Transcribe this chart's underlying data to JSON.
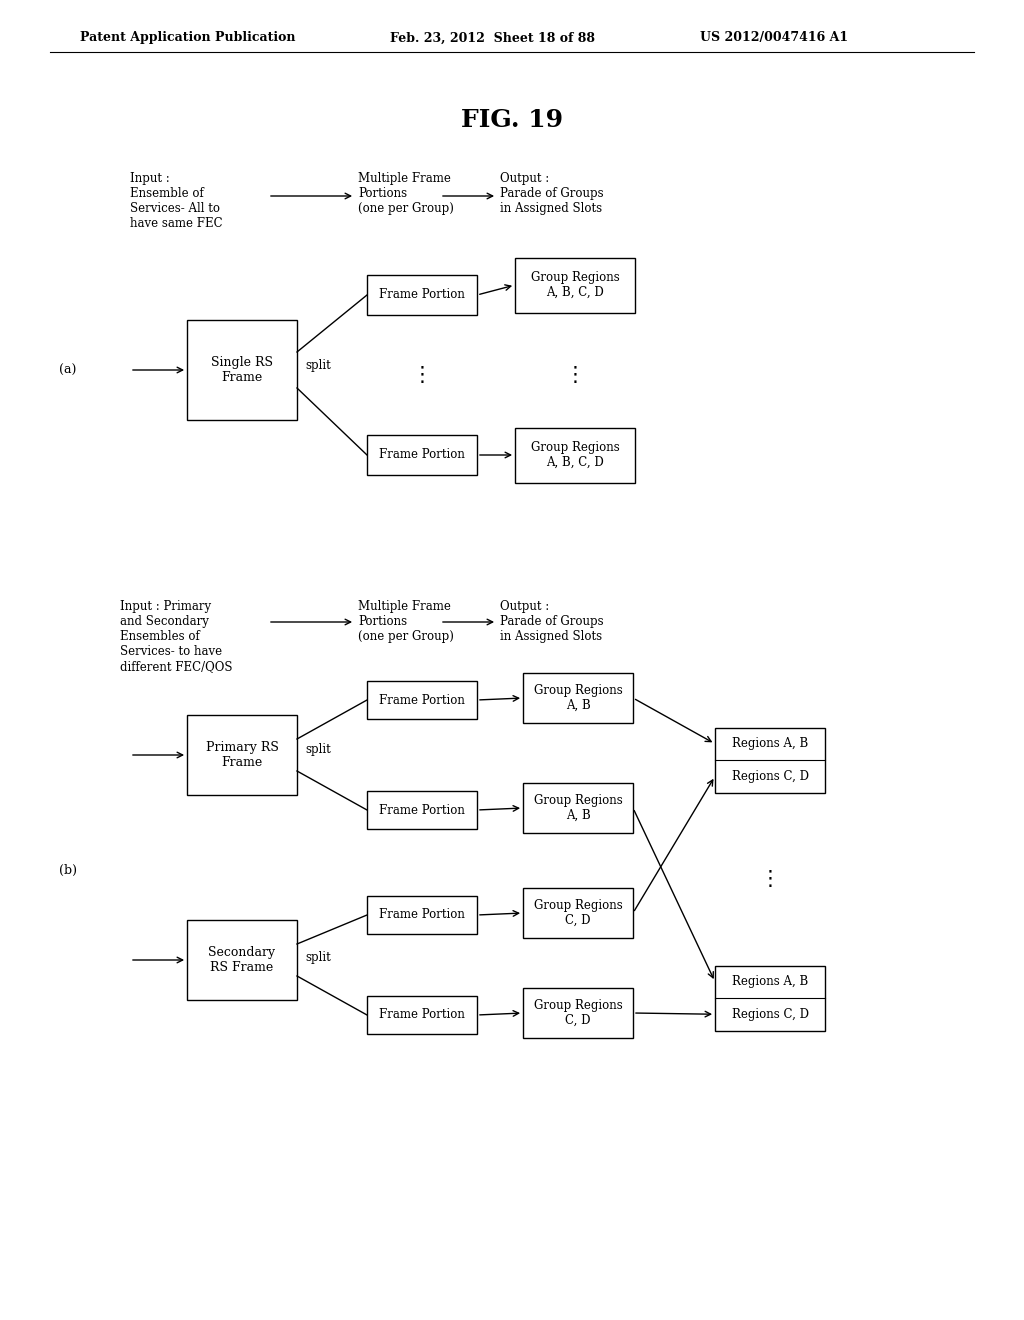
{
  "bg_color": "#ffffff",
  "title": "FIG. 19",
  "title_fontsize": 18,
  "header_text": "Patent Application Publication",
  "header_date": "Feb. 23, 2012  Sheet 18 of 88",
  "header_patent": "US 2012/0047416 A1",
  "font_size": 9
}
